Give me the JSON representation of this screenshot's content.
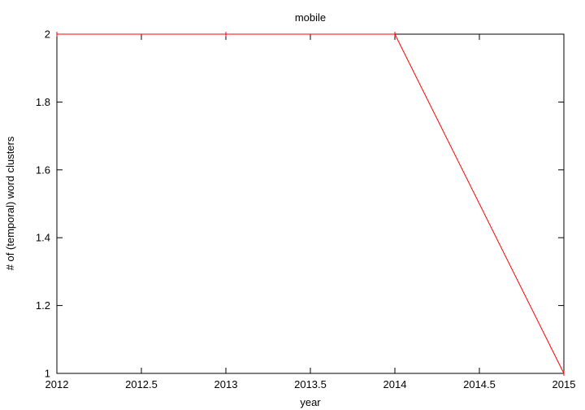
{
  "chart_data": {
    "type": "line",
    "title": "mobile",
    "xlabel": "year",
    "ylabel": "# of (temporal) word clusters",
    "xlim": [
      2012,
      2015
    ],
    "ylim": [
      1,
      2
    ],
    "x_ticks": [
      2012,
      2012.5,
      2013,
      2013.5,
      2014,
      2014.5,
      2015
    ],
    "y_ticks": [
      1,
      1.2,
      1.4,
      1.6,
      1.8,
      2
    ],
    "x_tick_labels": [
      "2012",
      "2012.5",
      "2013",
      "2013.5",
      "2014",
      "2014.5",
      "2015"
    ],
    "y_tick_labels": [
      "1",
      "1.2",
      "1.4",
      "1.6",
      "1.8",
      "2"
    ],
    "grid": false,
    "series": [
      {
        "color": "#ff0000",
        "x": [
          2012,
          2013,
          2014,
          2015
        ],
        "y": [
          2,
          2,
          2,
          1
        ]
      }
    ]
  }
}
